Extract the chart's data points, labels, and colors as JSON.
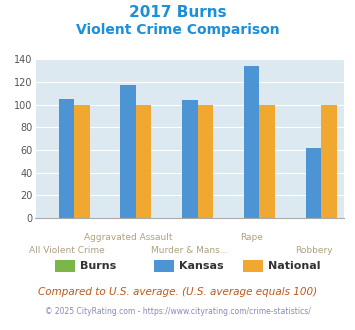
{
  "title_line1": "2017 Burns",
  "title_line2": "Violent Crime Comparison",
  "categories": [
    "All Violent Crime",
    "Aggravated Assault",
    "Murder & Mans...",
    "Rape",
    "Robbery"
  ],
  "cat_labels_upper": [
    "",
    "Aggravated Assault",
    "",
    "Rape",
    ""
  ],
  "cat_labels_lower": [
    "All Violent Crime",
    "",
    "Murder & Mans...",
    "",
    "Robbery"
  ],
  "series": {
    "Burns": [
      0,
      0,
      0,
      0,
      0
    ],
    "Kansas": [
      105,
      117,
      104,
      134,
      62
    ],
    "National": [
      100,
      100,
      100,
      100,
      100
    ]
  },
  "colors": {
    "Burns": "#7ab648",
    "Kansas": "#4d94d4",
    "National": "#f0a830"
  },
  "ylim": [
    0,
    140
  ],
  "yticks": [
    0,
    20,
    40,
    60,
    80,
    100,
    120,
    140
  ],
  "bg_color": "#dce9f0",
  "grid_color": "#ffffff",
  "title_color": "#1a8fdc",
  "xlabel_upper_color": "#b0a080",
  "xlabel_lower_color": "#b0a080",
  "bar_width": 0.25,
  "footnote": "Compared to U.S. average. (U.S. average equals 100)",
  "copyright": "© 2025 CityRating.com - https://www.cityrating.com/crime-statistics/",
  "footnote_color": "#c05818",
  "copyright_color": "#8888bb"
}
